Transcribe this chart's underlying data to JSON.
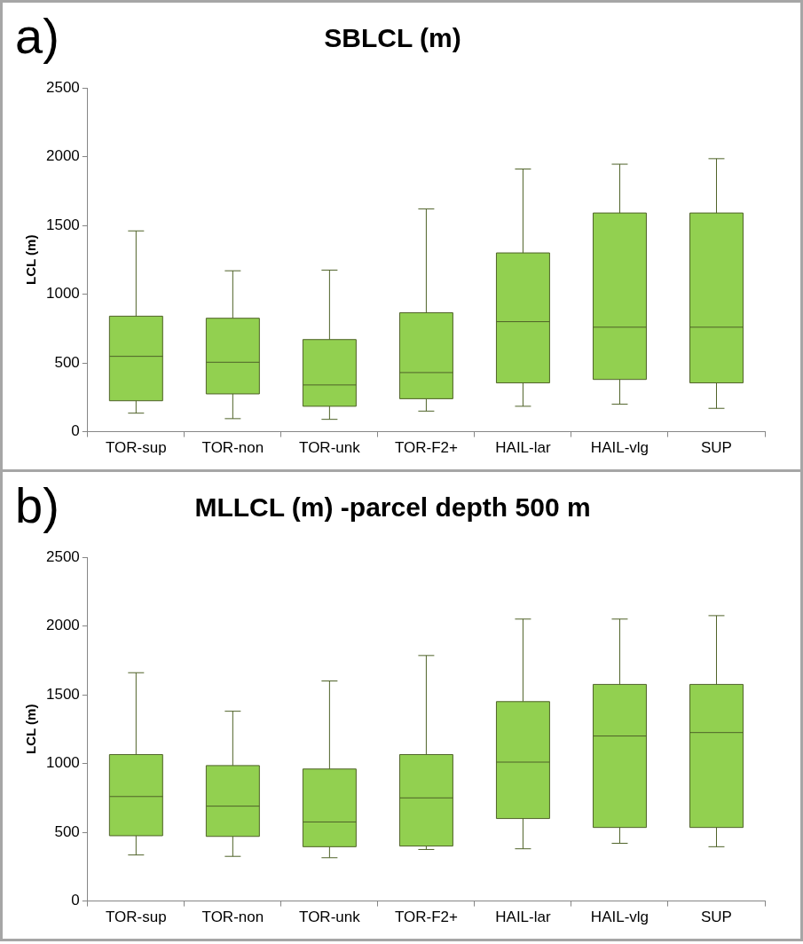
{
  "chart_data": [
    {
      "type": "box",
      "title": "SBLCL (m)",
      "ylabel": "LCL (m)",
      "annotations": [
        "a)"
      ],
      "categories": [
        "TOR-sup",
        "TOR-non",
        "TOR-unk",
        "TOR-F2+",
        "HAIL-lar",
        "HAIL-vlg",
        "SUP"
      ],
      "color": "#92d050",
      "ylim": [
        0,
        2500
      ],
      "yticks": [
        0,
        500,
        1000,
        1500,
        2000,
        2500
      ],
      "grid": false,
      "boxes": [
        {
          "low": 135,
          "q1": 225,
          "median": 548,
          "q3": 840,
          "high": 1460
        },
        {
          "low": 95,
          "q1": 275,
          "median": 505,
          "q3": 825,
          "high": 1170
        },
        {
          "low": 90,
          "q1": 185,
          "median": 340,
          "q3": 670,
          "high": 1175
        },
        {
          "low": 150,
          "q1": 240,
          "median": 430,
          "q3": 865,
          "high": 1620
        },
        {
          "low": 185,
          "q1": 355,
          "median": 800,
          "q3": 1300,
          "high": 1910
        },
        {
          "low": 200,
          "q1": 380,
          "median": 760,
          "q3": 1590,
          "high": 1945
        },
        {
          "low": 170,
          "q1": 355,
          "median": 760,
          "q3": 1590,
          "high": 1985
        }
      ]
    },
    {
      "type": "box",
      "title": "MLLCL (m) -parcel depth 500 m",
      "ylabel": "LCL (m)",
      "annotations": [
        "b)"
      ],
      "categories": [
        "TOR-sup",
        "TOR-non",
        "TOR-unk",
        "TOR-F2+",
        "HAIL-lar",
        "HAIL-vlg",
        "SUP"
      ],
      "color": "#92d050",
      "ylim": [
        0,
        2500
      ],
      "yticks": [
        0,
        500,
        1000,
        1500,
        2000,
        2500
      ],
      "grid": false,
      "boxes": [
        {
          "low": 335,
          "q1": 475,
          "median": 760,
          "q3": 1065,
          "high": 1660
        },
        {
          "low": 325,
          "q1": 470,
          "median": 690,
          "q3": 985,
          "high": 1380
        },
        {
          "low": 315,
          "q1": 395,
          "median": 575,
          "q3": 960,
          "high": 1600
        },
        {
          "low": 375,
          "q1": 400,
          "median": 750,
          "q3": 1065,
          "high": 1785
        },
        {
          "low": 380,
          "q1": 600,
          "median": 1010,
          "q3": 1450,
          "high": 2050
        },
        {
          "low": 420,
          "q1": 535,
          "median": 1200,
          "q3": 1575,
          "high": 2050
        },
        {
          "low": 395,
          "q1": 535,
          "median": 1225,
          "q3": 1575,
          "high": 2075
        }
      ]
    }
  ]
}
